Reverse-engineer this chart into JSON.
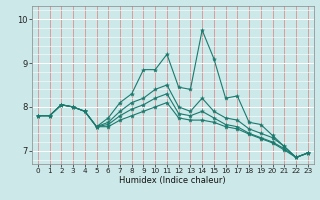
{
  "title": "",
  "xlabel": "Humidex (Indice chaleur)",
  "background_color": "#cce8e8",
  "grid_color_major": "#e08080",
  "grid_color_minor": "#ffffff",
  "line_color": "#1a7a6e",
  "xlim": [
    -0.5,
    23.5
  ],
  "ylim": [
    6.7,
    10.3
  ],
  "yticks": [
    7,
    8,
    9,
    10
  ],
  "xticks": [
    0,
    1,
    2,
    3,
    4,
    5,
    6,
    7,
    8,
    9,
    10,
    11,
    12,
    13,
    14,
    15,
    16,
    17,
    18,
    19,
    20,
    21,
    22,
    23
  ],
  "series": [
    [
      7.8,
      7.8,
      8.05,
      8.0,
      7.9,
      7.55,
      7.75,
      8.1,
      8.3,
      8.85,
      8.85,
      9.2,
      8.45,
      8.4,
      9.75,
      9.1,
      8.2,
      8.25,
      7.65,
      7.6,
      7.35,
      7.1,
      6.85,
      6.95
    ],
    [
      7.8,
      7.8,
      8.05,
      8.0,
      7.9,
      7.55,
      7.65,
      7.9,
      8.1,
      8.2,
      8.4,
      8.5,
      8.0,
      7.9,
      8.2,
      7.9,
      7.75,
      7.7,
      7.5,
      7.4,
      7.3,
      7.1,
      6.85,
      6.95
    ],
    [
      7.8,
      7.8,
      8.05,
      8.0,
      7.9,
      7.55,
      7.6,
      7.8,
      7.95,
      8.05,
      8.2,
      8.3,
      7.85,
      7.8,
      7.9,
      7.75,
      7.6,
      7.55,
      7.4,
      7.3,
      7.2,
      7.05,
      6.85,
      6.95
    ],
    [
      7.8,
      7.8,
      8.05,
      8.0,
      7.9,
      7.55,
      7.55,
      7.7,
      7.8,
      7.9,
      8.0,
      8.1,
      7.75,
      7.7,
      7.7,
      7.65,
      7.55,
      7.5,
      7.38,
      7.28,
      7.18,
      7.02,
      6.85,
      6.95
    ]
  ],
  "xlabel_fontsize": 6.0,
  "tick_fontsize": 5.2,
  "ytick_fontsize": 6.0
}
